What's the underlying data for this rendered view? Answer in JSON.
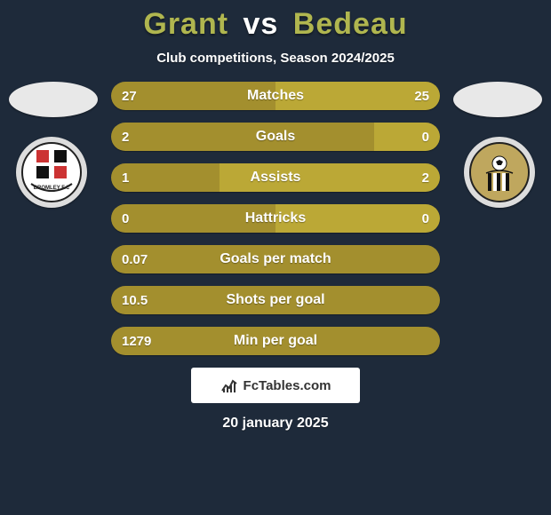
{
  "background_color": "#1e2a3a",
  "title": {
    "player1": "Grant",
    "vs": "vs",
    "player2": "Bedeau",
    "color_player": "#b0b64f",
    "color_vs": "#ffffff",
    "fontsize": 34
  },
  "subtitle": {
    "text": "Club competitions, Season 2024/2025",
    "color": "#ffffff",
    "fontsize": 15
  },
  "date": {
    "text": "20 january 2025",
    "color": "#ffffff",
    "fontsize": 16
  },
  "brand": {
    "text": "FcTables.com"
  },
  "row_style": {
    "label_color": "#ffffff",
    "label_fontsize": 16,
    "value_color": "#ffffff",
    "value_fontsize": 15,
    "fill_color": "#a38f2e",
    "fill_color_right": "#bba836",
    "track_color": "rgba(0,0,0,0.15)"
  },
  "rows": [
    {
      "label": "Matches",
      "left": "27",
      "right": "25",
      "left_pct": 50,
      "right_pct": 50
    },
    {
      "label": "Goals",
      "left": "2",
      "right": "0",
      "left_pct": 80,
      "right_pct": 20
    },
    {
      "label": "Assists",
      "left": "1",
      "right": "2",
      "left_pct": 33,
      "right_pct": 67
    },
    {
      "label": "Hattricks",
      "left": "0",
      "right": "0",
      "left_pct": 50,
      "right_pct": 50
    },
    {
      "label": "Goals per match",
      "left": "0.07",
      "right": "",
      "left_pct": 100,
      "right_pct": 0
    },
    {
      "label": "Shots per goal",
      "left": "10.5",
      "right": "",
      "left_pct": 100,
      "right_pct": 0
    },
    {
      "label": "Min per goal",
      "left": "1279",
      "right": "",
      "left_pct": 100,
      "right_pct": 0
    }
  ]
}
